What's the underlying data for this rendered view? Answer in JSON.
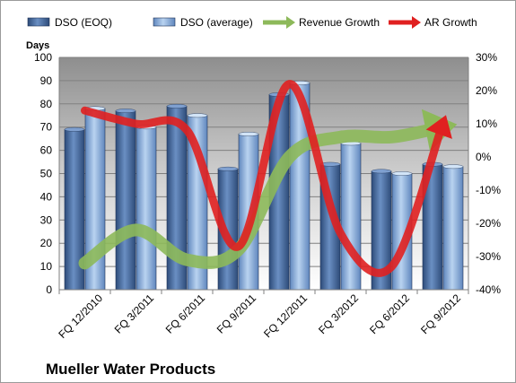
{
  "chart_data": {
    "type": "bar",
    "title": "",
    "categories": [
      "FQ 12/2010",
      "FQ 3/2011",
      "FQ 6/2011",
      "FQ 9/2011",
      "FQ 12/2011",
      "FQ 3/2012",
      "FQ 6/2012",
      "FQ 9/2012"
    ],
    "series": [
      {
        "name": "DSO (EOQ)",
        "type": "bar",
        "axis": "left",
        "color": "#4a6fa5",
        "values": [
          69,
          77,
          79,
          52,
          84,
          54,
          51,
          54
        ]
      },
      {
        "name": "DSO (average)",
        "type": "bar",
        "axis": "left",
        "color": "#8eb4e3",
        "values": [
          78,
          70,
          75,
          67,
          89,
          63,
          50,
          53
        ]
      },
      {
        "name": "Revenue Growth",
        "type": "line",
        "axis": "right",
        "color": "#8db95a",
        "values": [
          -0.32,
          -0.22,
          -0.31,
          -0.28,
          0.0,
          0.06,
          0.06,
          0.09
        ]
      },
      {
        "name": "AR Growth",
        "type": "line",
        "axis": "right",
        "color": "#e02020",
        "values": [
          0.14,
          0.1,
          0.08,
          -0.27,
          0.22,
          -0.23,
          -0.33,
          0.1
        ]
      }
    ],
    "y_left": {
      "label": "Days",
      "min": 0,
      "max": 100,
      "step": 10,
      "tick_labels": [
        "0",
        "10",
        "20",
        "30",
        "40",
        "50",
        "60",
        "70",
        "80",
        "90",
        "100"
      ]
    },
    "y_right": {
      "min": -0.4,
      "max": 0.3,
      "step": 0.1,
      "tick_labels": [
        "-40%",
        "-30%",
        "-20%",
        "-10%",
        "0%",
        "10%",
        "20%",
        "30%"
      ]
    },
    "grid": true,
    "legend_position": "top"
  },
  "footer": {
    "company": "Mueller Water Products"
  }
}
